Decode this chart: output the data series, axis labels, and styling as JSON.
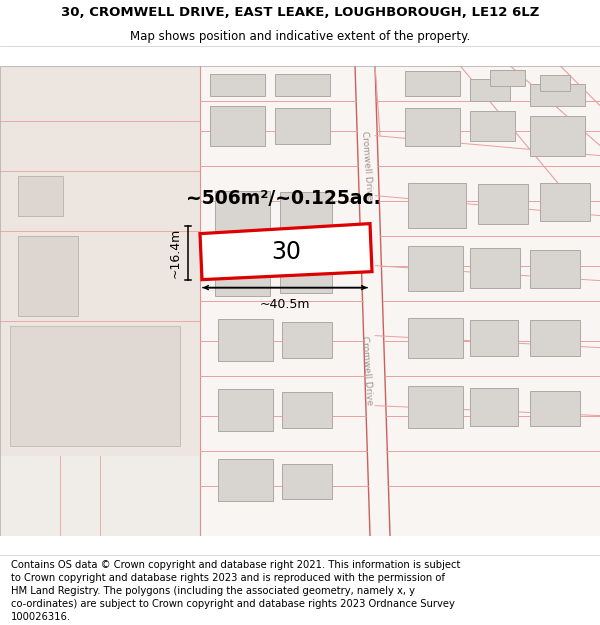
{
  "title_line1": "30, CROMWELL DRIVE, EAST LEAKE, LOUGHBOROUGH, LE12 6LZ",
  "title_line2": "Map shows position and indicative extent of the property.",
  "footer_lines": [
    "Contains OS data © Crown copyright and database right 2021. This information is subject",
    "to Crown copyright and database rights 2023 and is reproduced with the permission of",
    "HM Land Registry. The polygons (including the associated geometry, namely x, y",
    "co-ordinates) are subject to Crown copyright and database rights 2023 Ordnance Survey",
    "100026316."
  ],
  "bg_color": "#f0ebe6",
  "map_white": "#ffffff",
  "left_bg": "#ede5df",
  "boundary_color": "#e8a0a0",
  "boundary_dark": "#c86060",
  "building_fill": "#d8d4d0",
  "building_edge": "#b0a8a4",
  "highlight_red": "#dd0000",
  "highlight_fill": "#ffffff",
  "cromwell_color": "#c0b8b4",
  "label_area": "~506m²/~0.125ac.",
  "label_number": "30",
  "label_width": "~40.5m",
  "label_height": "~16.4m",
  "street_label": "Cromwell Drive",
  "title_fontsize": 9.5,
  "subtitle_fontsize": 8.5,
  "footer_fontsize": 7.2
}
